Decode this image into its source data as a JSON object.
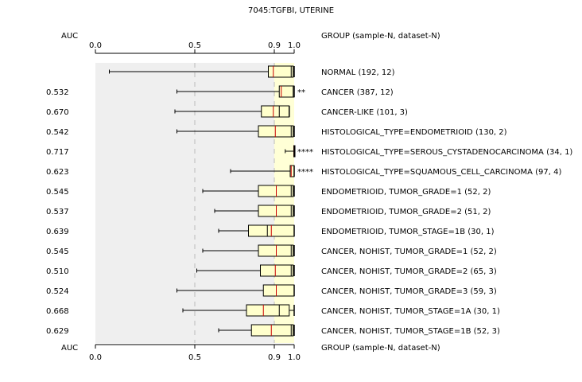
{
  "chart_data": {
    "type": "boxplot",
    "title": "7045:TGFBI, UTERINE",
    "axis": {
      "label": "AUC",
      "ticks": [
        "0.0",
        "0.5",
        "0.9",
        "1.0"
      ],
      "tick_values": [
        0.0,
        0.5,
        0.9,
        1.0
      ],
      "range": [
        0.0,
        1.0
      ]
    },
    "group_header": "GROUP (sample-N, dataset-N)",
    "highlight_band": [
      0.9,
      1.0
    ],
    "colors": {
      "box_fill": "#ffffcc",
      "median": "#cc0000",
      "significant_label": "#cc0000",
      "normal_label": "#000000",
      "background_band": "#efefef",
      "highlight_band": "#ffffd6"
    },
    "rows": [
      {
        "group": "NORMAL (192, 12)",
        "auc": "",
        "stars": "",
        "highlight": false,
        "whisker_low": 0.07,
        "q1": 0.87,
        "median": 0.895,
        "q3": 0.995,
        "whisker_high": 1.0,
        "inner": [
          0.985
        ]
      },
      {
        "group": "CANCER (387, 12)",
        "auc": "0.532",
        "stars": "**",
        "highlight": true,
        "whisker_low": 0.41,
        "q1": 0.925,
        "median": 0.935,
        "q3": 1.0,
        "whisker_high": 1.0,
        "inner": [
          0.995
        ]
      },
      {
        "group": "CANCER-LIKE (101, 3)",
        "auc": "0.670",
        "stars": "",
        "highlight": false,
        "whisker_low": 0.4,
        "q1": 0.835,
        "median": 0.895,
        "q3": 0.975,
        "whisker_high": 0.975,
        "inner": [
          0.925
        ]
      },
      {
        "group": "HISTOLOGICAL_TYPE=ENDOMETRIOID (130, 2)",
        "auc": "0.542",
        "stars": "",
        "highlight": false,
        "whisker_low": 0.41,
        "q1": 0.82,
        "median": 0.905,
        "q3": 0.995,
        "whisker_high": 1.0,
        "inner": [
          0.985
        ]
      },
      {
        "group": "HISTOLOGICAL_TYPE=SEROUS_CYSTADENOCARCINOMA (34, 1)",
        "auc": "0.717",
        "stars": "****",
        "highlight": true,
        "whisker_low": 0.955,
        "q1": 0.998,
        "median": 0.999,
        "q3": 1.0,
        "whisker_high": 1.0,
        "inner": []
      },
      {
        "group": "HISTOLOGICAL_TYPE=SQUAMOUS_CELL_CARCINOMA (97, 4)",
        "auc": "0.623",
        "stars": "****",
        "highlight": true,
        "whisker_low": 0.68,
        "q1": 0.98,
        "median": 0.985,
        "q3": 1.0,
        "whisker_high": 1.0,
        "inner": []
      },
      {
        "group": "ENDOMETRIOID, TUMOR_GRADE=1 (52, 2)",
        "auc": "0.545",
        "stars": "",
        "highlight": false,
        "whisker_low": 0.54,
        "q1": 0.82,
        "median": 0.91,
        "q3": 0.995,
        "whisker_high": 1.0,
        "inner": [
          0.985
        ]
      },
      {
        "group": "ENDOMETRIOID, TUMOR_GRADE=2 (51, 2)",
        "auc": "0.537",
        "stars": "",
        "highlight": false,
        "whisker_low": 0.6,
        "q1": 0.82,
        "median": 0.91,
        "q3": 0.995,
        "whisker_high": 1.0,
        "inner": [
          0.985
        ]
      },
      {
        "group": "ENDOMETRIOID, TUMOR_STAGE=1B (30, 1)",
        "auc": "0.639",
        "stars": "",
        "highlight": false,
        "whisker_low": 0.62,
        "q1": 0.77,
        "median": 0.885,
        "q3": 1.0,
        "whisker_high": 1.0,
        "inner": [
          0.865
        ]
      },
      {
        "group": "CANCER, NOHIST, TUMOR_GRADE=1 (52, 2)",
        "auc": "0.545",
        "stars": "",
        "highlight": false,
        "whisker_low": 0.54,
        "q1": 0.82,
        "median": 0.91,
        "q3": 0.995,
        "whisker_high": 1.0,
        "inner": [
          0.985
        ]
      },
      {
        "group": "CANCER, NOHIST, TUMOR_GRADE=2 (65, 3)",
        "auc": "0.510",
        "stars": "",
        "highlight": false,
        "whisker_low": 0.51,
        "q1": 0.83,
        "median": 0.905,
        "q3": 0.995,
        "whisker_high": 1.0,
        "inner": [
          0.985
        ]
      },
      {
        "group": "CANCER, NOHIST, TUMOR_GRADE=3 (59, 3)",
        "auc": "0.524",
        "stars": "",
        "highlight": false,
        "whisker_low": 0.41,
        "q1": 0.845,
        "median": 0.91,
        "q3": 1.0,
        "whisker_high": 1.0,
        "inner": []
      },
      {
        "group": "CANCER, NOHIST, TUMOR_STAGE=1A (30, 1)",
        "auc": "0.668",
        "stars": "",
        "highlight": false,
        "whisker_low": 0.44,
        "q1": 0.76,
        "median": 0.845,
        "q3": 0.975,
        "whisker_high": 1.0,
        "inner": [
          0.925
        ]
      },
      {
        "group": "CANCER, NOHIST, TUMOR_STAGE=1B (52, 3)",
        "auc": "0.629",
        "stars": "",
        "highlight": false,
        "whisker_low": 0.62,
        "q1": 0.785,
        "median": 0.885,
        "q3": 0.995,
        "whisker_high": 1.0,
        "inner": [
          0.985
        ]
      }
    ]
  }
}
